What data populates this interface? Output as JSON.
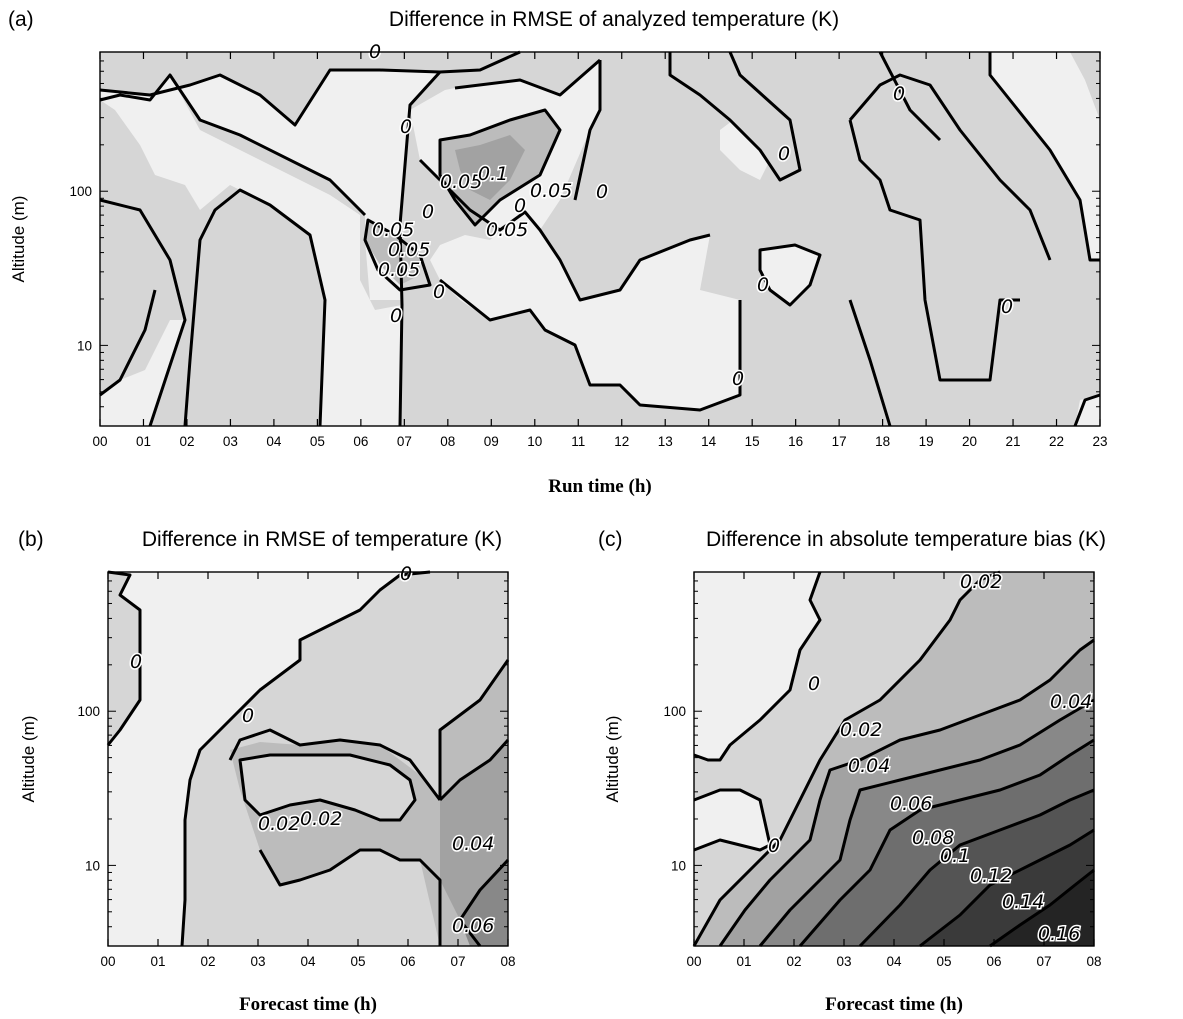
{
  "panels": [
    {
      "panel_label": "(a)",
      "title": "Difference in RMSE of analyzed temperature (K)",
      "xlabel": "Run time (h)",
      "ylabel": "Altitude (m)"
    },
    {
      "panel_label": "(b)",
      "title": "Difference in RMSE of temperature (K)",
      "xlabel": "Forecast time (h)",
      "ylabel": "Altitude (m)"
    },
    {
      "panel_label": "(c)",
      "title": "Difference in absolute temperature bias (K)",
      "xlabel": "Forecast time (h)",
      "ylabel": "Altitude (m)"
    }
  ],
  "colors": {
    "level_fills": [
      "#f0f0f0",
      "#d6d6d6",
      "#bcbcbc",
      "#a2a2a2",
      "#888888",
      "#6e6e6e",
      "#545454",
      "#3a3a3a",
      "#242424"
    ],
    "contour": "#000000"
  },
  "chart_data": [
    {
      "type": "contour",
      "x_ticks": [
        "00",
        "01",
        "02",
        "03",
        "04",
        "05",
        "06",
        "07",
        "08",
        "09",
        "10",
        "11",
        "12",
        "13",
        "14",
        "15",
        "16",
        "17",
        "18",
        "19",
        "20",
        "21",
        "22",
        "23"
      ],
      "y_scale": "log",
      "y_ticks": [
        "10",
        "100"
      ],
      "ylim": [
        3,
        800
      ],
      "contour_labels": [
        "0",
        "0",
        "0",
        "0",
        "0",
        "0",
        "0",
        "0",
        "0",
        "0",
        "0",
        "0",
        "0.05",
        "0.1",
        "0.05",
        "0.05",
        "0.05",
        "0.05",
        "0.05"
      ]
    },
    {
      "type": "contour",
      "x_ticks": [
        "00",
        "01",
        "02",
        "03",
        "04",
        "05",
        "06",
        "07",
        "08"
      ],
      "y_scale": "log",
      "y_ticks": [
        "10",
        "100"
      ],
      "ylim": [
        3,
        800
      ],
      "contour_labels": [
        "0",
        "0",
        "0",
        "0.02",
        "0.02",
        "0.04",
        "0.06"
      ]
    },
    {
      "type": "contour",
      "x_ticks": [
        "00",
        "01",
        "02",
        "03",
        "04",
        "05",
        "06",
        "07",
        "08"
      ],
      "y_scale": "log",
      "y_ticks": [
        "10",
        "100"
      ],
      "ylim": [
        3,
        800
      ],
      "contour_labels": [
        "0",
        "0",
        "0.02",
        "0.02",
        "0.04",
        "0.04",
        "0.06",
        "0.08",
        "0.1",
        "0.12",
        "0.14",
        "0.16"
      ]
    }
  ]
}
